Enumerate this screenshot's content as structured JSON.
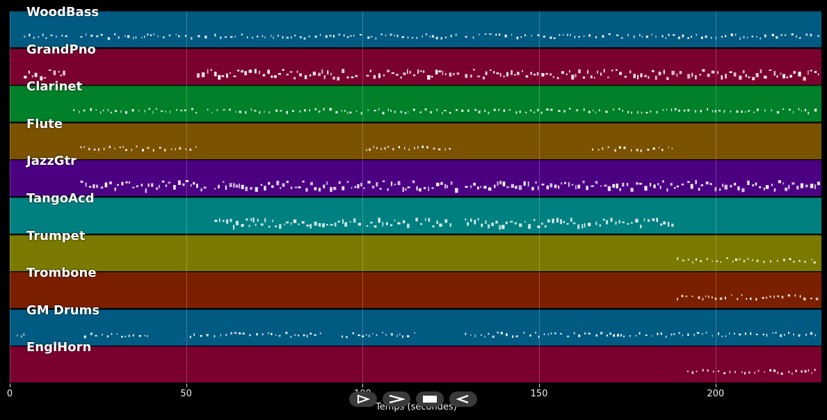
{
  "tracks": [
    {
      "name": "WoodBass",
      "color": "#005a82"
    },
    {
      "name": "GrandPno",
      "color": "#7a0030"
    },
    {
      "name": "Clarinet",
      "color": "#008028"
    },
    {
      "name": "Flute",
      "color": "#7a5200"
    },
    {
      "name": "JazzGtr",
      "color": "#4b0082"
    },
    {
      "name": "TangoAcd",
      "color": "#008080"
    },
    {
      "name": "Trumpet",
      "color": "#7a7a00"
    },
    {
      "name": "Trombone",
      "color": "#7a2000"
    },
    {
      "name": "GM Drums",
      "color": "#005a82"
    },
    {
      "name": "EnglHorn",
      "color": "#7a0030"
    }
  ],
  "axis": {
    "ticks": [
      "0",
      "50",
      "100",
      "150",
      "200"
    ],
    "tick_values": [
      0,
      50,
      100,
      150,
      200
    ],
    "max_seconds": 230,
    "label": "Temps (secondes)"
  },
  "controls": [
    {
      "name": "play-button",
      "icon": "play-icon"
    },
    {
      "name": "fast-forward-button",
      "icon": "fast-forward-icon"
    },
    {
      "name": "stop-button",
      "icon": "stop-icon"
    },
    {
      "name": "rewind-button",
      "icon": "rewind-icon"
    }
  ],
  "note_segments": [
    [
      [
        4,
        16
      ],
      [
        20,
        56
      ],
      [
        58,
        127
      ],
      [
        129,
        191
      ],
      [
        192,
        229
      ]
    ],
    [
      [
        4,
        16
      ],
      [
        53,
        98
      ],
      [
        101,
        127
      ],
      [
        129,
        190
      ],
      [
        192,
        229
      ]
    ],
    [
      [
        18,
        53
      ],
      [
        56,
        191
      ],
      [
        192,
        229
      ]
    ],
    [
      [
        20,
        53
      ],
      [
        101,
        125
      ],
      [
        165,
        188
      ]
    ],
    [
      [
        20,
        56
      ],
      [
        58,
        127
      ],
      [
        129,
        191
      ],
      [
        192,
        229
      ]
    ],
    [
      [
        58,
        100
      ],
      [
        101,
        113
      ],
      [
        115,
        125
      ],
      [
        129,
        165
      ],
      [
        166,
        188
      ]
    ],
    [
      [
        189,
        229
      ]
    ],
    [
      [
        189,
        229
      ]
    ],
    [
      [
        2,
        4
      ],
      [
        21,
        40
      ],
      [
        51,
        88
      ],
      [
        94,
        115
      ],
      [
        129,
        191
      ],
      [
        192,
        229
      ]
    ],
    [
      [
        192,
        229
      ]
    ]
  ]
}
